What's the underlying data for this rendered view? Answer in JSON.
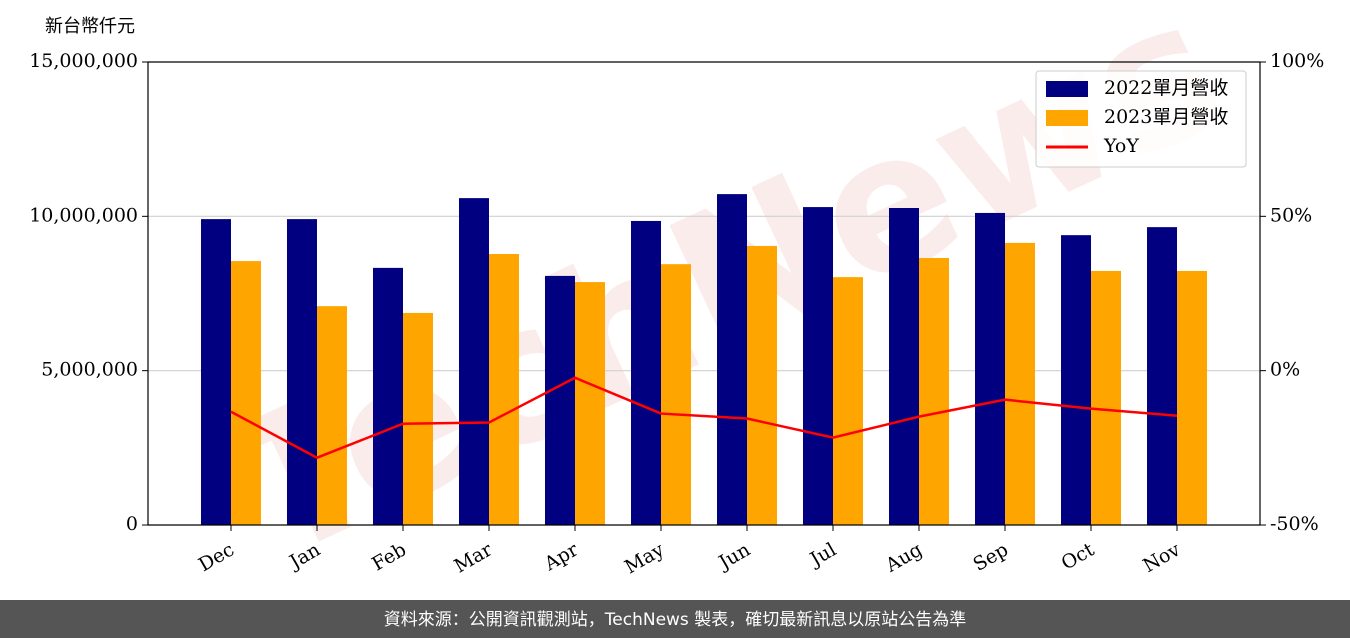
{
  "chart_data": {
    "type": "bar_line",
    "y_label": "新台幣仟元",
    "watermark": "TechNews",
    "categories": [
      "Dec",
      "Jan",
      "Feb",
      "Mar",
      "Apr",
      "May",
      "Jun",
      "Jul",
      "Aug",
      "Sep",
      "Oct",
      "Nov"
    ],
    "series": [
      {
        "name": "2022單月營收",
        "color": "#000080",
        "values": [
          9910000,
          9910000,
          8330000,
          10590000,
          8070000,
          9850000,
          10720000,
          10300000,
          10270000,
          10110000,
          9390000,
          9650000
        ]
      },
      {
        "name": "2023單月營收",
        "color": "#ffa500",
        "values": [
          8550000,
          7090000,
          6870000,
          8780000,
          7870000,
          8450000,
          9040000,
          8030000,
          8650000,
          9140000,
          8230000,
          8230000
        ]
      },
      {
        "name": "YoY",
        "color": "#ff0000",
        "axis": "y2",
        "values": [
          -13.3,
          -28.2,
          -17.2,
          -16.8,
          -2.3,
          -13.9,
          -15.5,
          -21.7,
          -14.9,
          -9.4,
          -12.3,
          -14.6
        ]
      }
    ],
    "ylim": [
      0,
      15000000
    ],
    "yticks": [
      0,
      {
        "value": 5000000,
        "label": "5,000,000"
      },
      {
        "value": 10000000,
        "label": "10,000,000"
      },
      {
        "value": 15000000,
        "label": "15,000,000"
      }
    ],
    "y2lim": [
      -50,
      100
    ],
    "y2ticks": [
      {
        "value": -50,
        "label": "-50%"
      },
      {
        "value": 0,
        "label": "0%"
      },
      {
        "value": 50,
        "label": "50%"
      },
      {
        "value": 100,
        "label": "100%"
      }
    ],
    "grid": true,
    "legend": "upper right",
    "footer": "資料來源：公開資訊觀測站，TechNews 製表，確切最新訊息以原站公告為準"
  }
}
